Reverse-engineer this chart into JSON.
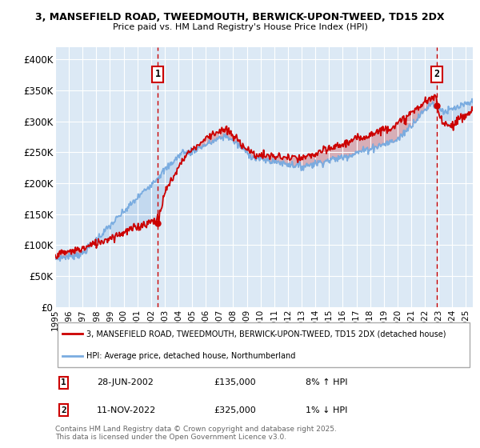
{
  "title_line1": "3, MANSEFIELD ROAD, TWEEDMOUTH, BERWICK-UPON-TWEED, TD15 2DX",
  "title_line2": "Price paid vs. HM Land Registry's House Price Index (HPI)",
  "ylim": [
    0,
    420000
  ],
  "yticks": [
    0,
    50000,
    100000,
    150000,
    200000,
    250000,
    300000,
    350000,
    400000
  ],
  "ytick_labels": [
    "£0",
    "£50K",
    "£100K",
    "£150K",
    "£200K",
    "£250K",
    "£300K",
    "£350K",
    "£400K"
  ],
  "bg_color": "#dce9f5",
  "red_color": "#cc0000",
  "blue_color": "#7aace0",
  "fill_color": "#c5d8f0",
  "marker1_date": 2002.49,
  "marker2_date": 2022.86,
  "marker1_price": 135000,
  "marker2_price": 325000,
  "legend_line1": "3, MANSEFIELD ROAD, TWEEDMOUTH, BERWICK-UPON-TWEED, TD15 2DX (detached house)",
  "legend_line2": "HPI: Average price, detached house, Northumberland",
  "ann1_date": "28-JUN-2002",
  "ann1_price": "£135,000",
  "ann1_hpi": "8% ↑ HPI",
  "ann2_date": "11-NOV-2022",
  "ann2_price": "£325,000",
  "ann2_hpi": "1% ↓ HPI",
  "footer": "Contains HM Land Registry data © Crown copyright and database right 2025.\nThis data is licensed under the Open Government Licence v3.0.",
  "xmin": 1995.0,
  "xmax": 2025.5
}
